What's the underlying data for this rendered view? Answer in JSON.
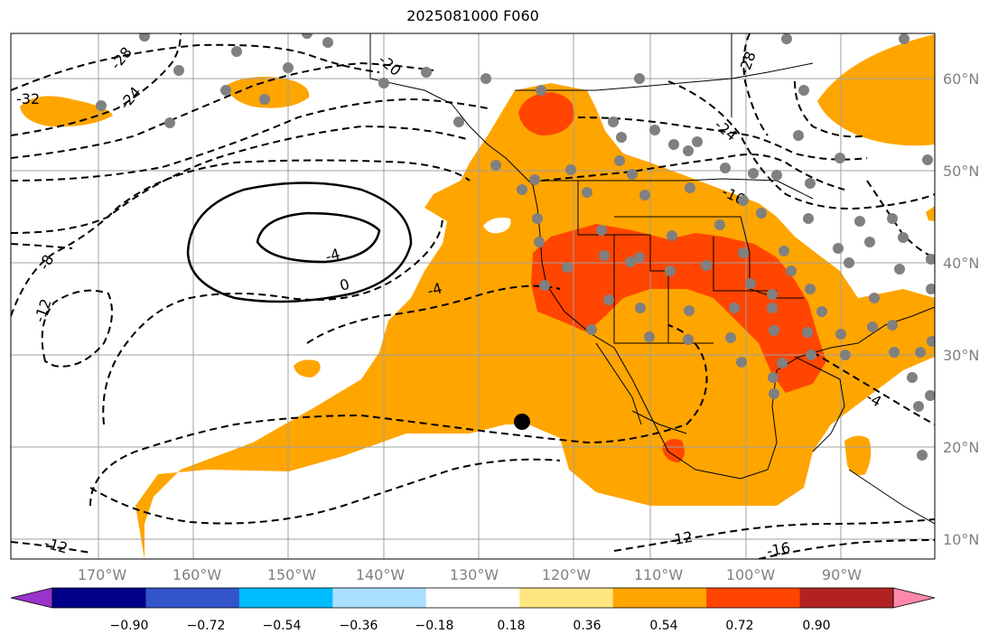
{
  "title": "2025081000 F060",
  "latitudes": [
    {
      "label": "60°N",
      "value": 60
    },
    {
      "label": "50°N",
      "value": 50
    },
    {
      "label": "40°N",
      "value": 40
    },
    {
      "label": "30°N",
      "value": 30
    },
    {
      "label": "20°N",
      "value": 20
    },
    {
      "label": "10°N",
      "value": 10
    }
  ],
  "longitudes": [
    {
      "label": "170°W",
      "value": -170
    },
    {
      "label": "160°W",
      "value": -160
    },
    {
      "label": "150°W",
      "value": -150
    },
    {
      "label": "140°W",
      "value": -140
    },
    {
      "label": "130°W",
      "value": -130
    },
    {
      "label": "120°W",
      "value": -120
    },
    {
      "label": "110°W",
      "value": -110
    },
    {
      "label": "100°W",
      "value": -100
    },
    {
      "label": "90°W",
      "value": -90
    }
  ],
  "contour_labels": [
    "-32",
    "-28",
    "-24",
    "-20",
    "-24",
    "-28",
    "-16",
    "-8",
    "-12",
    "-4",
    "0",
    "-4",
    "-4",
    "-12",
    "-12",
    "-16"
  ],
  "colorbar": {
    "ticks": [
      "−0.90",
      "−0.72",
      "−0.54",
      "−0.36",
      "−0.18",
      "0.18",
      "0.36",
      "0.54",
      "0.72",
      "0.90"
    ],
    "colors": [
      "#9933cc",
      "#000088",
      "#3355cc",
      "#00bbff",
      "#aadfff",
      "#ffffff",
      "#ffe680",
      "#ffa500",
      "#ff4500",
      "#b22222",
      "#ff88aa"
    ]
  },
  "colors": {
    "orange": "#ffa500",
    "red_orange": "#ff4500",
    "station": "#808080",
    "marker": "#000000"
  }
}
